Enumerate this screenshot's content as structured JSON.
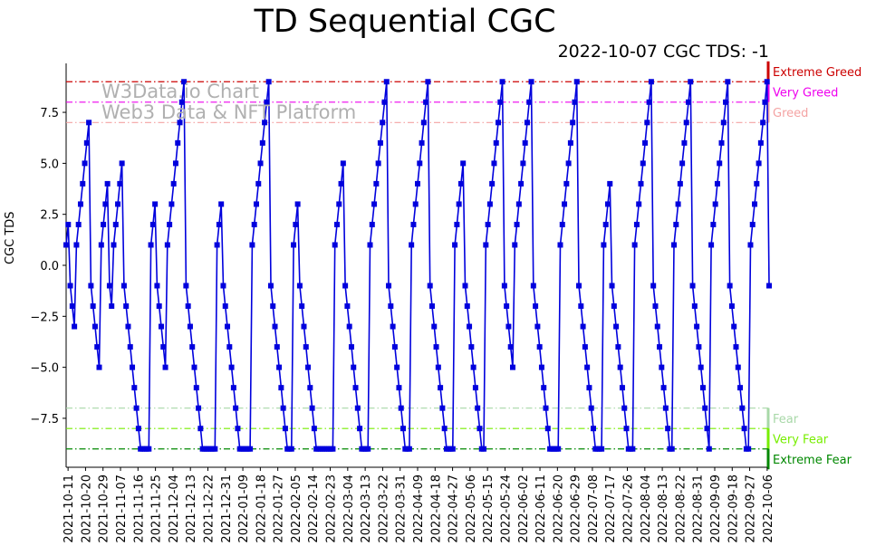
{
  "chart_data": {
    "type": "line",
    "title": "TD Sequential CGC",
    "subtitle": "2022-10-07 CGC TDS: -1",
    "watermark": [
      "W3Data.io Chart",
      "Web3 Data & NFT Platform"
    ],
    "ylabel": "CGC TDS",
    "xlabel": "",
    "ylim": [
      -9.9,
      9.9
    ],
    "yticks": [
      -7.5,
      -5.0,
      -2.5,
      0.0,
      2.5,
      5.0,
      7.5
    ],
    "ytick_labels": [
      "−7.5",
      "−5.0",
      "−2.5",
      "0.0",
      "2.5",
      "5.0",
      "7.5"
    ],
    "x_start": "2021-10-10",
    "x_end": "2022-10-07",
    "xtick_labels": [
      "2021-10-11",
      "2021-10-20",
      "2021-10-29",
      "2021-11-07",
      "2021-11-16",
      "2021-11-25",
      "2021-12-04",
      "2021-12-13",
      "2021-12-22",
      "2021-12-31",
      "2022-01-09",
      "2022-01-18",
      "2022-01-27",
      "2022-02-05",
      "2022-02-14",
      "2022-02-23",
      "2022-03-04",
      "2022-03-13",
      "2022-03-22",
      "2022-03-31",
      "2022-04-09",
      "2022-04-18",
      "2022-04-27",
      "2022-05-06",
      "2022-05-15",
      "2022-05-24",
      "2022-06-02",
      "2022-06-11",
      "2022-06-20",
      "2022-06-29",
      "2022-07-08",
      "2022-07-17",
      "2022-07-26",
      "2022-08-04",
      "2022-08-13",
      "2022-08-22",
      "2022-08-31",
      "2022-09-09",
      "2022-09-18",
      "2022-09-27",
      "2022-10-06"
    ],
    "series": [
      {
        "name": "CGC TDS",
        "color": "#0000dd",
        "values": [
          1,
          2,
          -1,
          -2,
          -3,
          1,
          2,
          3,
          4,
          5,
          6,
          7,
          -1,
          -2,
          -3,
          -4,
          -5,
          1,
          2,
          3,
          4,
          -1,
          -2,
          1,
          2,
          3,
          4,
          5,
          -1,
          -2,
          -3,
          -4,
          -5,
          -6,
          -7,
          -8,
          -9,
          -9,
          -9,
          -9,
          -9,
          1,
          2,
          3,
          -1,
          -2,
          -3,
          -4,
          -5,
          1,
          2,
          3,
          4,
          5,
          6,
          7,
          8,
          9,
          -1,
          -2,
          -3,
          -4,
          -5,
          -6,
          -7,
          -8,
          -9,
          -9,
          -9,
          -9,
          -9,
          -9,
          -9,
          1,
          2,
          3,
          -1,
          -2,
          -3,
          -4,
          -5,
          -6,
          -7,
          -8,
          -9,
          -9,
          -9,
          -9,
          -9,
          -9,
          1,
          2,
          3,
          4,
          5,
          6,
          7,
          8,
          9,
          -1,
          -2,
          -3,
          -4,
          -5,
          -6,
          -7,
          -8,
          -9,
          -9,
          -9,
          1,
          2,
          3,
          -1,
          -2,
          -3,
          -4,
          -5,
          -6,
          -7,
          -8,
          -9,
          -9,
          -9,
          -9,
          -9,
          -9,
          -9,
          -9,
          -9,
          1,
          2,
          3,
          4,
          5,
          -1,
          -2,
          -3,
          -4,
          -5,
          -6,
          -7,
          -8,
          -9,
          -9,
          -9,
          -9,
          1,
          2,
          3,
          4,
          5,
          6,
          7,
          8,
          9,
          -1,
          -2,
          -3,
          -4,
          -5,
          -6,
          -7,
          -8,
          -9,
          -9,
          -9,
          1,
          2,
          3,
          4,
          5,
          6,
          7,
          8,
          9,
          -1,
          -2,
          -3,
          -4,
          -5,
          -6,
          -7,
          -8,
          -9,
          -9,
          -9,
          -9,
          1,
          2,
          3,
          4,
          5,
          -1,
          -2,
          -3,
          -4,
          -5,
          -6,
          -7,
          -8,
          -9,
          -9,
          1,
          2,
          3,
          4,
          5,
          6,
          7,
          8,
          9,
          -1,
          -2,
          -3,
          -4,
          -5,
          1,
          2,
          3,
          4,
          5,
          6,
          7,
          8,
          9,
          -1,
          -2,
          -3,
          -4,
          -5,
          -6,
          -7,
          -8,
          -9,
          -9,
          -9,
          -9,
          -9,
          1,
          2,
          3,
          4,
          5,
          6,
          7,
          8,
          9,
          -1,
          -2,
          -3,
          -4,
          -5,
          -6,
          -7,
          -8,
          -9,
          -9,
          -9,
          -9,
          1,
          2,
          3,
          4,
          -1,
          -2,
          -3,
          -4,
          -5,
          -6,
          -7,
          -8,
          -9,
          -9,
          -9,
          1,
          2,
          3,
          4,
          5,
          6,
          7,
          8,
          9,
          -1,
          -2,
          -3,
          -4,
          -5,
          -6,
          -7,
          -8,
          -9,
          -9,
          1,
          2,
          3,
          4,
          5,
          6,
          7,
          8,
          9,
          -1,
          -2,
          -3,
          -4,
          -5,
          -6,
          -7,
          -8,
          -9,
          1,
          2,
          3,
          4,
          5,
          6,
          7,
          8,
          9,
          -1,
          -2,
          -3,
          -4,
          -5,
          -6,
          -7,
          -8,
          -9,
          -9,
          1,
          2,
          3,
          4,
          5,
          6,
          7,
          8,
          9,
          -1
        ]
      }
    ],
    "threshold_lines": [
      {
        "label": "Extreme Greed",
        "y": 9,
        "color": "#cc0000"
      },
      {
        "label": "Very Greed",
        "y": 8,
        "color": "#ee00ee"
      },
      {
        "label": "Greed",
        "y": 7,
        "color": "#f4a3a3"
      },
      {
        "label": "Fear",
        "y": -7,
        "color": "#a8d8a8"
      },
      {
        "label": "Very Fear",
        "y": -8,
        "color": "#77ee00"
      },
      {
        "label": "Extreme Fear",
        "y": -9,
        "color": "#008800"
      }
    ],
    "grid": false
  }
}
